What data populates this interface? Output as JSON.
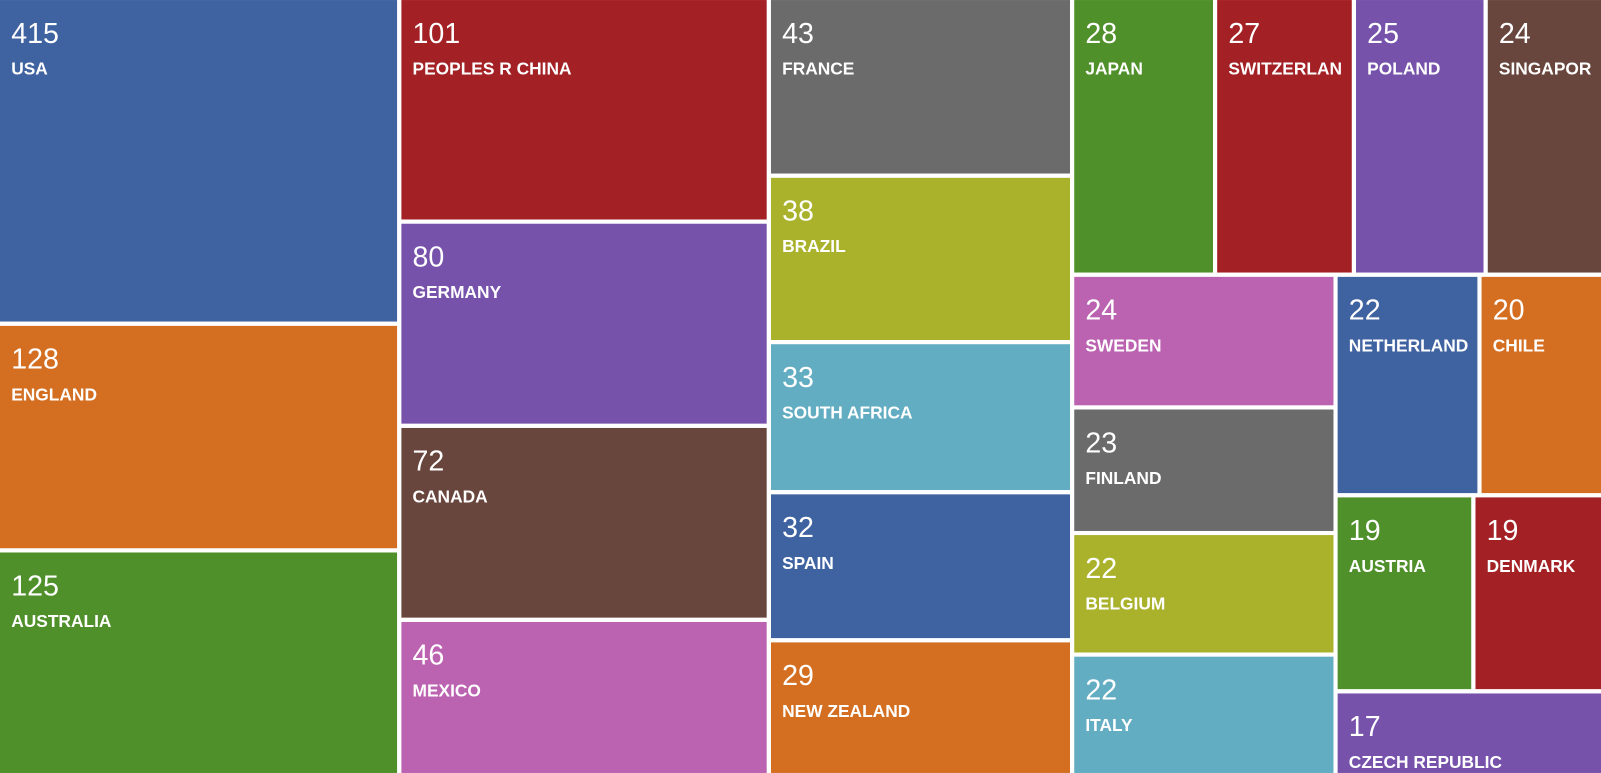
{
  "chart_data": {
    "type": "treemap",
    "categories": [
      "USA",
      "ENGLAND",
      "AUSTRALIA",
      "PEOPLES R CHINA",
      "GERMANY",
      "CANADA",
      "MEXICO",
      "FRANCE",
      "BRAZIL",
      "SOUTH AFRICA",
      "SPAIN",
      "NEW ZEALAND",
      "JAPAN",
      "SWITZERLAN",
      "POLAND",
      "SINGAPOR",
      "SWEDEN",
      "FINLAND",
      "BELGIUM",
      "ITALY",
      "NETHERLAND",
      "CHILE",
      "AUSTRIA",
      "DENMARK",
      "CZECH REPUBLIC"
    ],
    "values": [
      415,
      128,
      125,
      101,
      80,
      72,
      46,
      43,
      38,
      33,
      32,
      29,
      28,
      27,
      25,
      24,
      24,
      23,
      22,
      22,
      22,
      20,
      19,
      19,
      17
    ],
    "colors": [
      "#3f62a1",
      "#d46f22",
      "#4f902a",
      "#a32125",
      "#7652ab",
      "#68463d",
      "#bb62b1",
      "#6b6b6b",
      "#aab22c",
      "#62adc2",
      "#3f62a1",
      "#d46f22",
      "#4f902a",
      "#a32125",
      "#7652ab",
      "#68463d",
      "#bb62b1",
      "#6b6b6b",
      "#aab22c",
      "#62adc2",
      "#3f62a1",
      "#d46f22",
      "#4f902a",
      "#a32125",
      "#7652ab"
    ]
  }
}
